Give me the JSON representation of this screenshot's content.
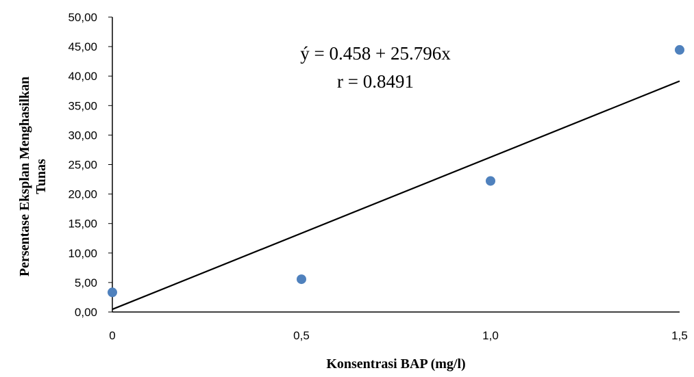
{
  "chart_data": {
    "type": "scatter",
    "title": "",
    "xlabel": "Konsentrasi BAP (mg/l)",
    "ylabel_lines": [
      "Persentase Eksplan Menghasilkan",
      "Tunas"
    ],
    "x_ticks": [
      "0",
      "0,5",
      "1,0",
      "1,5"
    ],
    "x_tick_values": [
      0,
      0.5,
      1.0,
      1.5
    ],
    "y_ticks": [
      "0,00",
      "5,00",
      "10,00",
      "15,00",
      "20,00",
      "25,00",
      "30,00",
      "35,00",
      "40,00",
      "45,00",
      "50,00"
    ],
    "y_tick_values": [
      0,
      5,
      10,
      15,
      20,
      25,
      30,
      35,
      40,
      45,
      50
    ],
    "xlim": [
      0,
      1.5
    ],
    "ylim": [
      0,
      50
    ],
    "series": [
      {
        "x": [
          0,
          0.5,
          1.0,
          1.5
        ],
        "y": [
          3.33,
          5.56,
          22.22,
          44.44
        ]
      }
    ],
    "trendline": {
      "intercept": 0.458,
      "slope": 25.796,
      "x_range": [
        0,
        1.5
      ]
    },
    "annotations": {
      "equation": "ý = 0.458 + 25.796x",
      "r_value": "r = 0.8491"
    },
    "grid": false,
    "legend": "none",
    "colors": {
      "marker": "#4f81bd",
      "line": "#000000",
      "axis": "#000000"
    }
  }
}
